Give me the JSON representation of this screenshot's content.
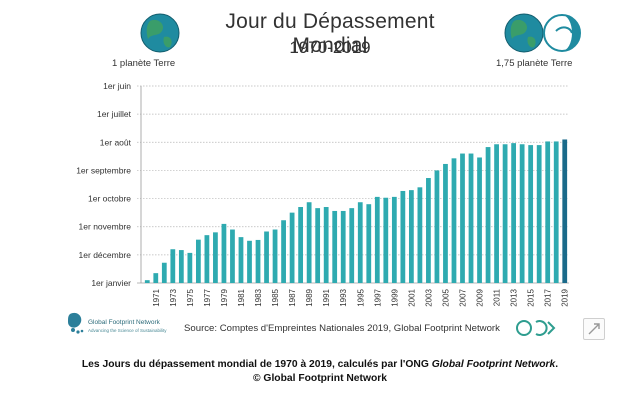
{
  "title": "Jour du Dépassement Mondial",
  "subtitle": "1970-2019",
  "left_caption": "1 planète Terre",
  "right_caption": "1,75 planète Terre",
  "source": "Source: Comptes d'Empreintes Nationales 2019, Global Footprint Network",
  "logo_name": "Global Footprint Network",
  "logo_tagline": "Advancing the Science of Sustainability",
  "caption_main": "Les Jours du dépassement mondial de 1970 à 2019, calculés par l'ONG ",
  "caption_org": "Global Footprint Network",
  "caption_end": ".",
  "caption_copyright": "© Global Footprint Network",
  "colors": {
    "bar": "#2eaab0",
    "bar_highlight": "#1a6a8a",
    "grid": "#b7b7b7",
    "globe_water": "#1f8ba0",
    "globe_land": "#3a9d6a"
  },
  "icons": [
    "earth-globe-icon",
    "earth-globe-icon",
    "partial-earth-globe-icon",
    "expand-icon"
  ],
  "chart_data": {
    "type": "bar",
    "title": "Jour du Dépassement Mondial",
    "subtitle": "1970-2019",
    "xlabel": "",
    "ylabel": "",
    "y_axis": "month of overshoot day (later = higher)",
    "y_ticks": [
      "1er janvier",
      "1er décembre",
      "1er novembre",
      "1er octobre",
      "1er septembre",
      "1er août",
      "1er juillet",
      "1er juin"
    ],
    "x_tick_labels": [
      "1971",
      "1973",
      "1975",
      "1977",
      "1979",
      "1981",
      "1983",
      "1985",
      "1987",
      "1989",
      "1991",
      "1993",
      "1995",
      "1997",
      "1999",
      "2001",
      "2003",
      "2005",
      "2007",
      "2009",
      "2011",
      "2013",
      "2015",
      "2017",
      "2019"
    ],
    "grid": true,
    "years": [
      1970,
      1971,
      1972,
      1973,
      1974,
      1975,
      1976,
      1977,
      1978,
      1979,
      1980,
      1981,
      1982,
      1983,
      1984,
      1985,
      1986,
      1987,
      1988,
      1989,
      1990,
      1991,
      1992,
      1993,
      1994,
      1995,
      1996,
      1997,
      1998,
      1999,
      2000,
      2001,
      2002,
      2003,
      2004,
      2005,
      2006,
      2007,
      2008,
      2009,
      2010,
      2011,
      2012,
      2013,
      2014,
      2015,
      2016,
      2017,
      2018,
      2019
    ],
    "overshoot_day": [
      "29 déc",
      "21 déc",
      "10 déc",
      "26 nov",
      "27 nov",
      "30 nov",
      "16 nov",
      "11 nov",
      "7 nov",
      "29 oct",
      "4 nov",
      "12 nov",
      "16 nov",
      "15 nov",
      "6 nov",
      "4 nov",
      "24 oct",
      "16 oct",
      "10 oct",
      "5 oct",
      "11 oct",
      "10 oct",
      "14 oct",
      "14 oct",
      "11 oct",
      "5 oct",
      "7 oct",
      "29 sept",
      "30 sept",
      "29 sept",
      "23 sept",
      "22 sept",
      "19 sept",
      "9 sept",
      "1 sept",
      "25 août",
      "19 août",
      "14 août",
      "14 août",
      "18 août",
      "7 août",
      "4 août",
      "4 août",
      "3 août",
      "4 août",
      "5 août",
      "5 août",
      "1 août",
      "1 août",
      "29 juil"
    ],
    "months_past_jan1": [
      0.1,
      0.35,
      0.72,
      1.2,
      1.17,
      1.07,
      1.54,
      1.7,
      1.8,
      2.1,
      1.9,
      1.63,
      1.5,
      1.53,
      1.83,
      1.9,
      2.23,
      2.5,
      2.7,
      2.87,
      2.66,
      2.7,
      2.56,
      2.56,
      2.66,
      2.87,
      2.8,
      3.06,
      3.03,
      3.06,
      3.27,
      3.3,
      3.4,
      3.73,
      4.0,
      4.23,
      4.43,
      4.6,
      4.6,
      4.46,
      4.83,
      4.93,
      4.93,
      4.97,
      4.93,
      4.9,
      4.9,
      5.03,
      5.03,
      5.1
    ],
    "ylim": [
      0,
      7
    ]
  }
}
